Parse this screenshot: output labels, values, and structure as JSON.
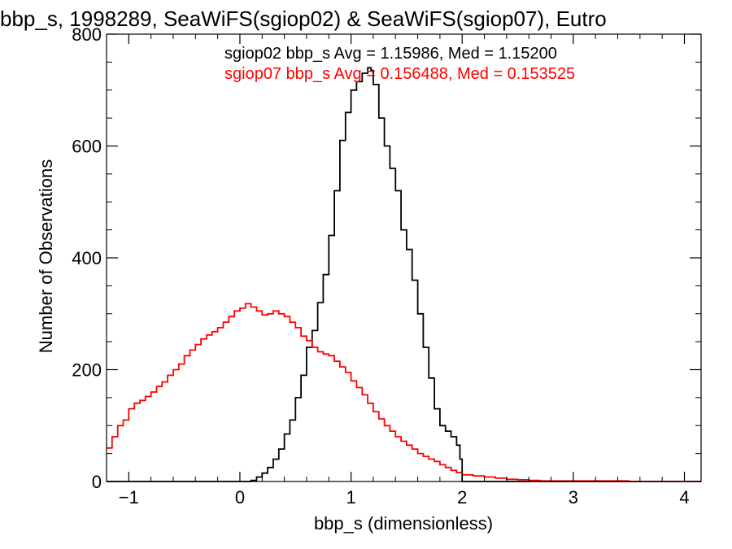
{
  "chart_data": {
    "type": "line",
    "title": "bbp_s, 1998289, SeaWiFS(sgiop02) & SeaWiFS(sgiop07), Eutro",
    "xlabel": "bbp_s (dimensionless)",
    "ylabel": "Number of Observations",
    "xlim": [
      -1.2,
      4.15
    ],
    "ylim": [
      0,
      800
    ],
    "x_ticks": [
      "−1",
      "0",
      "1",
      "2",
      "3",
      "4"
    ],
    "x_tick_values": [
      -1,
      0,
      1,
      2,
      3,
      4
    ],
    "y_ticks": [
      "0",
      "200",
      "400",
      "600",
      "800"
    ],
    "y_tick_values": [
      0,
      200,
      400,
      600,
      800
    ],
    "grid": false,
    "step": "histogram",
    "annotations": [
      {
        "text": "sgiop02 bbp_s Avg = 1.15986, Med = 1.15200",
        "color": "#000000"
      },
      {
        "text": "sgiop07 bbp_s Avg = 0.156488, Med = 0.153525",
        "color": "#ff0000"
      }
    ],
    "series": [
      {
        "color": "#000000",
        "x": [
          -1.2,
          -1.0,
          -0.8,
          -0.6,
          -0.4,
          -0.2,
          0.0,
          0.1,
          0.15,
          0.2,
          0.25,
          0.3,
          0.35,
          0.4,
          0.45,
          0.5,
          0.55,
          0.6,
          0.65,
          0.7,
          0.75,
          0.8,
          0.85,
          0.9,
          0.95,
          1.0,
          1.05,
          1.1,
          1.15,
          1.18,
          1.2,
          1.25,
          1.3,
          1.35,
          1.4,
          1.45,
          1.5,
          1.55,
          1.6,
          1.65,
          1.7,
          1.75,
          1.8,
          1.85,
          1.9,
          1.95,
          1.98,
          2.0,
          2.2,
          2.5,
          3.0,
          3.5,
          4.0,
          4.15
        ],
        "y": [
          0,
          0,
          0,
          0,
          0,
          0,
          0,
          2,
          8,
          15,
          25,
          40,
          58,
          85,
          110,
          150,
          190,
          240,
          270,
          320,
          370,
          440,
          520,
          610,
          660,
          700,
          715,
          730,
          740,
          735,
          710,
          650,
          600,
          560,
          520,
          450,
          415,
          360,
          300,
          240,
          185,
          130,
          100,
          90,
          80,
          65,
          40,
          0,
          0,
          0,
          0,
          0,
          0,
          0
        ]
      },
      {
        "color": "#ff0000",
        "x": [
          -1.2,
          -1.15,
          -1.1,
          -1.05,
          -1.0,
          -0.95,
          -0.9,
          -0.85,
          -0.8,
          -0.75,
          -0.7,
          -0.65,
          -0.6,
          -0.55,
          -0.5,
          -0.45,
          -0.4,
          -0.35,
          -0.3,
          -0.25,
          -0.2,
          -0.15,
          -0.1,
          -0.05,
          0.0,
          0.05,
          0.1,
          0.15,
          0.2,
          0.25,
          0.3,
          0.35,
          0.4,
          0.45,
          0.5,
          0.55,
          0.6,
          0.65,
          0.7,
          0.75,
          0.8,
          0.85,
          0.9,
          0.95,
          1.0,
          1.05,
          1.1,
          1.15,
          1.2,
          1.25,
          1.3,
          1.35,
          1.4,
          1.45,
          1.5,
          1.55,
          1.6,
          1.65,
          1.7,
          1.75,
          1.8,
          1.85,
          1.9,
          1.95,
          2.0,
          2.1,
          2.2,
          2.3,
          2.4,
          2.5,
          2.6,
          2.7,
          2.8,
          3.0,
          3.5,
          4.0,
          4.15
        ],
        "y": [
          60,
          80,
          100,
          110,
          130,
          140,
          145,
          152,
          160,
          170,
          178,
          190,
          200,
          210,
          225,
          235,
          245,
          255,
          262,
          268,
          275,
          285,
          295,
          305,
          310,
          318,
          312,
          305,
          298,
          300,
          305,
          300,
          295,
          285,
          275,
          260,
          252,
          240,
          232,
          228,
          225,
          215,
          205,
          195,
          180,
          168,
          155,
          140,
          125,
          112,
          100,
          90,
          80,
          72,
          65,
          58,
          50,
          45,
          40,
          36,
          30,
          25,
          20,
          16,
          12,
          10,
          8,
          6,
          4,
          3,
          2,
          1,
          1,
          1,
          0,
          0,
          0
        ]
      }
    ]
  }
}
